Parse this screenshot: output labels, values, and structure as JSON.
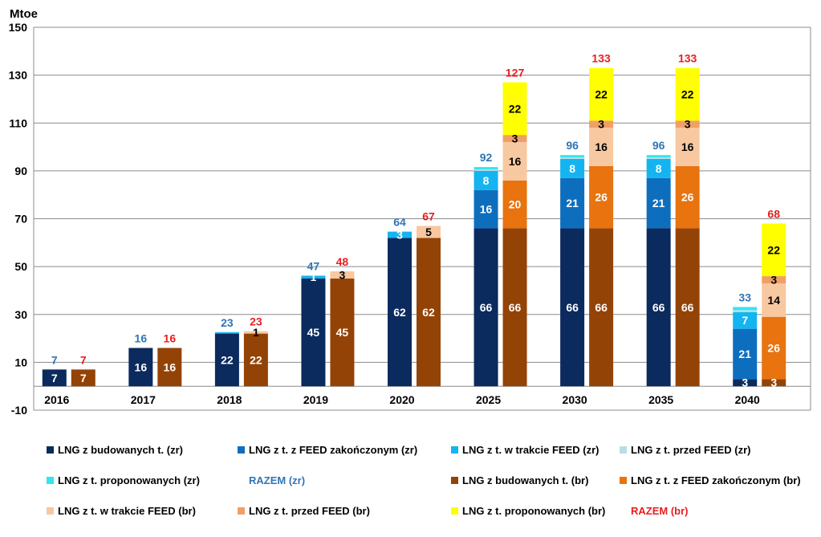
{
  "chart_data": {
    "type": "bar",
    "stacked": true,
    "unit_label": "Mtoe",
    "ylim": [
      -10,
      150
    ],
    "yticks": [
      150,
      130,
      110,
      90,
      70,
      50,
      30,
      10,
      -10
    ],
    "categories": [
      "2016",
      "2017",
      "2018",
      "2019",
      "2020",
      "2025",
      "2030",
      "2035",
      "2040"
    ],
    "groups": [
      {
        "name": "zr",
        "total_name": "RAZEM (zr)",
        "total_color": "#2E75B6",
        "series": [
          {
            "name": "LNG z budowanych t. (zr)",
            "color": "#0B2A5E",
            "label_color": "#ffffff",
            "values": [
              7,
              16,
              22,
              45,
              62,
              66,
              66,
              66,
              3
            ],
            "labels": [
              "7",
              "16",
              "22",
              "45",
              "62",
              "66",
              "66",
              "66",
              "3"
            ]
          },
          {
            "name": "LNG z t. z FEED zakończonym (zr)",
            "color": "#0E6EBE",
            "label_color": "#ffffff",
            "values": [
              0,
              0,
              0,
              0,
              0,
              16,
              21,
              21,
              21
            ],
            "labels": [
              "",
              "",
              "",
              "",
              "",
              "16",
              "21",
              "21",
              "21"
            ]
          },
          {
            "name": "LNG z t. w trakcie  FEED (zr)",
            "color": "#14B4F0",
            "label_color": "#ffffff",
            "values": [
              0,
              0,
              0.6,
              1.2,
              2.6,
              8,
              8,
              8,
              7
            ],
            "labels": [
              "",
              "",
              "",
              "1",
              "3",
              "8",
              "8",
              "8",
              "7"
            ]
          },
          {
            "name": "LNG z t. przed FEED (zr)",
            "color": "#B7DEE8",
            "label_color": "#000000",
            "values": [
              0,
              0,
              0,
              0,
              0,
              0.6,
              0.6,
              0.6,
              0.8
            ],
            "labels": [
              "",
              "",
              "",
              "",
              "",
              "",
              "",
              "",
              ""
            ]
          },
          {
            "name": "LNG z t. proponowanych (zr)",
            "color": "#33E5F0",
            "label_color": "#000000",
            "values": [
              0,
              0,
              0,
              0,
              0,
              1,
              1,
              1,
              1.3
            ],
            "labels": [
              "",
              "",
              "",
              "",
              "",
              "",
              "",
              "",
              ""
            ]
          }
        ],
        "totals": [
          "7",
          "16",
          "23",
          "47",
          "64",
          "92",
          "96",
          "96",
          "33"
        ]
      },
      {
        "name": "br",
        "total_name": "RAZEM (br)",
        "total_color": "#E81E1E",
        "series": [
          {
            "name": "LNG z budowanych t. (br)",
            "color": "#944307",
            "label_color": "#ffffff",
            "values": [
              7,
              16,
              22,
              45,
              62,
              66,
              66,
              66,
              3
            ],
            "labels": [
              "7",
              "16",
              "22",
              "45",
              "62",
              "66",
              "66",
              "66",
              "3"
            ]
          },
          {
            "name": "LNG z t. z FEED zakończonym (br)",
            "color": "#E8730F",
            "label_color": "#ffffff",
            "values": [
              0,
              0,
              0,
              0,
              0,
              20,
              26,
              26,
              26
            ],
            "labels": [
              "",
              "",
              "",
              "",
              "",
              "20",
              "26",
              "26",
              "26"
            ]
          },
          {
            "name": "LNG z t. w trakcie  FEED (br)",
            "color": "#F8C8A0",
            "label_color": "#000000",
            "values": [
              0,
              0,
              1,
              3,
              5,
              16,
              16,
              16,
              14
            ],
            "labels": [
              "",
              "",
              "1",
              "3",
              "5",
              "16",
              "16",
              "16",
              "14"
            ]
          },
          {
            "name": "LNG z t. przed FEED (br)",
            "color": "#F0A066",
            "label_color": "#000000",
            "values": [
              0,
              0,
              0,
              0,
              0,
              3,
              3,
              3,
              3
            ],
            "labels": [
              "",
              "",
              "",
              "",
              "",
              "3",
              "3",
              "3",
              "3"
            ]
          },
          {
            "name": "LNG z t. proponowanych (br)",
            "color": "#FFFF00",
            "label_color": "#000000",
            "values": [
              0,
              0,
              0,
              0,
              0,
              22,
              22,
              22,
              22
            ],
            "labels": [
              "",
              "",
              "",
              "",
              "",
              "22",
              "22",
              "22",
              "22"
            ]
          }
        ],
        "totals": [
          "7",
          "16",
          "23",
          "48",
          "67",
          "127",
          "133",
          "133",
          "68"
        ]
      }
    ],
    "legend": [
      {
        "label": "LNG z budowanych t. (zr)",
        "color": "#0B2A5E",
        "kind": "swatch"
      },
      {
        "label": "LNG z t. z FEED zakończonym (zr)",
        "color": "#0E6EBE",
        "kind": "swatch"
      },
      {
        "label": "LNG z t. w trakcie  FEED (zr)",
        "color": "#14B4F0",
        "kind": "swatch"
      },
      {
        "label": "LNG z t. przed FEED (zr)",
        "color": "#B7DEE8",
        "kind": "swatch"
      },
      {
        "label": "LNG z t. proponowanych (zr)",
        "color": "#33E5F0",
        "kind": "swatch"
      },
      {
        "label": "RAZEM (zr)",
        "color": "#2E75B6",
        "kind": "text"
      },
      {
        "label": "LNG z budowanych t. (br)",
        "color": "#944307",
        "kind": "swatch"
      },
      {
        "label": "LNG z t. z FEED zakończonym (br)",
        "color": "#E8730F",
        "kind": "swatch"
      },
      {
        "label": "LNG z t. w trakcie  FEED (br)",
        "color": "#F8C8A0",
        "kind": "swatch"
      },
      {
        "label": "LNG z t. przed FEED (br)",
        "color": "#F0A066",
        "kind": "swatch"
      },
      {
        "label": "LNG z t. proponowanych (br)",
        "color": "#FFFF00",
        "kind": "swatch"
      },
      {
        "label": "RAZEM (br)",
        "color": "#E81E1E",
        "kind": "text"
      }
    ],
    "legend_columns": 4,
    "grid": true
  }
}
